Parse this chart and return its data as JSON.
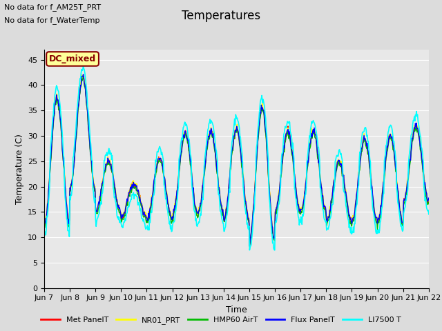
{
  "title": "Temperatures",
  "ylabel": "Temperature (C)",
  "xlabel": "Time",
  "ylim": [
    0,
    47
  ],
  "yticks": [
    0,
    5,
    10,
    15,
    20,
    25,
    30,
    35,
    40,
    45
  ],
  "xtick_labels": [
    "Jun 7",
    "Jun 8",
    "Jun 9",
    "Jun 10",
    "Jun 11",
    "Jun 12",
    "Jun 13",
    "Jun 14",
    "Jun 15",
    "Jun 16",
    "Jun 17",
    "Jun 18",
    "Jun 19",
    "Jun 20",
    "Jun 21",
    "Jun 22"
  ],
  "series_colors": [
    "#ff0000",
    "#ffff00",
    "#00bb00",
    "#0000ff",
    "#00ffff"
  ],
  "series_labels": [
    "Met PanelT",
    "NR01_PRT",
    "HMP60 AirT",
    "Flux PanelT",
    "LI7500 T"
  ],
  "series_linewidths": [
    1.0,
    1.0,
    1.0,
    1.0,
    1.2
  ],
  "annotation_text": [
    "No data for f_AM25T_PRT",
    "No data for f_WaterTemp"
  ],
  "dc_mixed_text": "DC_mixed",
  "dc_mixed_color": "#880000",
  "dc_mixed_bg": "#ffff99",
  "background_color": "#dcdcdc",
  "plot_bg": "#e8e8e8",
  "title_fontsize": 12,
  "label_fontsize": 9,
  "tick_fontsize": 8,
  "annot_fontsize": 8
}
